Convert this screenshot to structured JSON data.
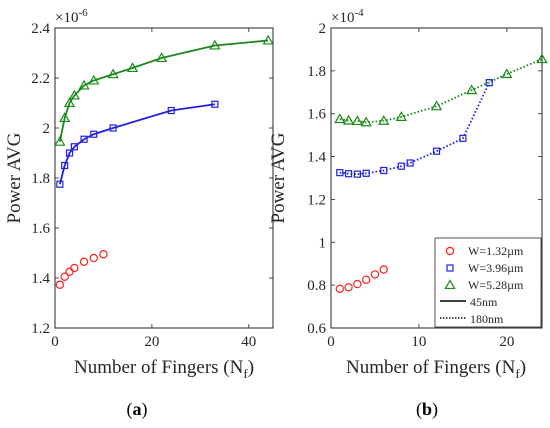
{
  "chart_data": [
    {
      "id": "a",
      "type": "line",
      "caption_letter": "a",
      "exponent_label": "×10",
      "exponent_power": "-6",
      "xlabel_main": "Number of Fingers (N",
      "xlabel_sub": "f",
      "xlabel_close": ")",
      "ylabel": "Power AVG",
      "xlim": [
        0,
        45
      ],
      "ylim": [
        1.2,
        2.4
      ],
      "xticks": [
        0,
        20,
        40
      ],
      "yticks": [
        1.2,
        1.4,
        1.6,
        1.8,
        2.0,
        2.2,
        2.4
      ],
      "ytick_labels": [
        "1.2",
        "1.4",
        "1.6",
        "1.8",
        "2",
        "2.2",
        "2.4"
      ],
      "xtick_labels": [
        "0",
        "20",
        "40"
      ],
      "series": [
        {
          "color": "#ff2020",
          "marker": "circle",
          "line": "solid",
          "draw_line": false,
          "x": [
            1,
            2,
            3,
            4,
            6,
            8,
            10
          ],
          "y": [
            1.373,
            1.405,
            1.425,
            1.44,
            1.465,
            1.48,
            1.495
          ]
        },
        {
          "color": "#2020e0",
          "marker": "square",
          "line": "solid",
          "draw_line": true,
          "x": [
            1,
            2,
            3,
            4,
            6,
            8,
            12,
            24,
            33
          ],
          "y": [
            1.775,
            1.85,
            1.9,
            1.925,
            1.955,
            1.975,
            2.0,
            2.07,
            2.095
          ]
        },
        {
          "color": "#1a8a1a",
          "marker": "triangle",
          "line": "solid",
          "draw_line": true,
          "x": [
            1,
            2,
            3,
            4,
            6,
            8,
            12,
            16,
            22,
            33,
            44
          ],
          "y": [
            1.945,
            2.04,
            2.1,
            2.13,
            2.17,
            2.19,
            2.215,
            2.24,
            2.28,
            2.33,
            2.35
          ]
        }
      ]
    },
    {
      "id": "b",
      "type": "line",
      "caption_letter": "b",
      "exponent_label": "×10",
      "exponent_power": "-4",
      "xlabel_main": "Number of Fingers (N",
      "xlabel_sub": "f",
      "xlabel_close": ")",
      "ylabel": "Power AVG",
      "xlim": [
        0,
        24
      ],
      "ylim": [
        0.6,
        2.0
      ],
      "xticks": [
        0,
        10,
        20
      ],
      "yticks": [
        0.6,
        0.8,
        1.0,
        1.2,
        1.4,
        1.6,
        1.8,
        2.0
      ],
      "ytick_labels": [
        "0.6",
        "0.8",
        "1",
        "1.2",
        "1.4",
        "1.6",
        "1.8",
        "2"
      ],
      "xtick_labels": [
        "0",
        "10",
        "20"
      ],
      "series": [
        {
          "name": "W=1.32µm",
          "color": "#ff2020",
          "marker": "circle",
          "line": "dotted",
          "draw_line": false,
          "x": [
            1,
            2,
            3,
            4,
            5,
            6
          ],
          "y": [
            0.783,
            0.79,
            0.805,
            0.825,
            0.85,
            0.873
          ]
        },
        {
          "name": "W=3.96µm",
          "color": "#2020e0",
          "marker": "square",
          "line": "dotted",
          "draw_line": true,
          "x": [
            1,
            2,
            3,
            4,
            6,
            8,
            9,
            12,
            15,
            18
          ],
          "y": [
            1.325,
            1.32,
            1.318,
            1.322,
            1.335,
            1.355,
            1.37,
            1.425,
            1.485,
            1.745
          ]
        },
        {
          "name": "W=5.28µm",
          "color": "#1a8a1a",
          "marker": "triangle",
          "line": "dotted",
          "draw_line": true,
          "x": [
            1,
            2,
            3,
            4,
            6,
            8,
            12,
            16,
            20,
            24
          ],
          "y": [
            1.575,
            1.568,
            1.566,
            1.56,
            1.567,
            1.585,
            1.635,
            1.71,
            1.785,
            1.855
          ]
        }
      ],
      "legend": {
        "placement": "bottom-right",
        "entries": [
          {
            "label": "W=1.32µm",
            "kind": "marker",
            "marker": "circle",
            "color": "#ff2020"
          },
          {
            "label": "W=3.96µm",
            "kind": "marker",
            "marker": "square",
            "color": "#2020e0"
          },
          {
            "label": "W=5.28µm",
            "kind": "marker",
            "marker": "triangle",
            "color": "#1a8a1a"
          },
          {
            "label": "45nm",
            "kind": "line",
            "dash": "solid",
            "color": "#000000"
          },
          {
            "label": "180nm",
            "kind": "line",
            "dash": "dotted",
            "color": "#000000"
          }
        ]
      }
    }
  ]
}
